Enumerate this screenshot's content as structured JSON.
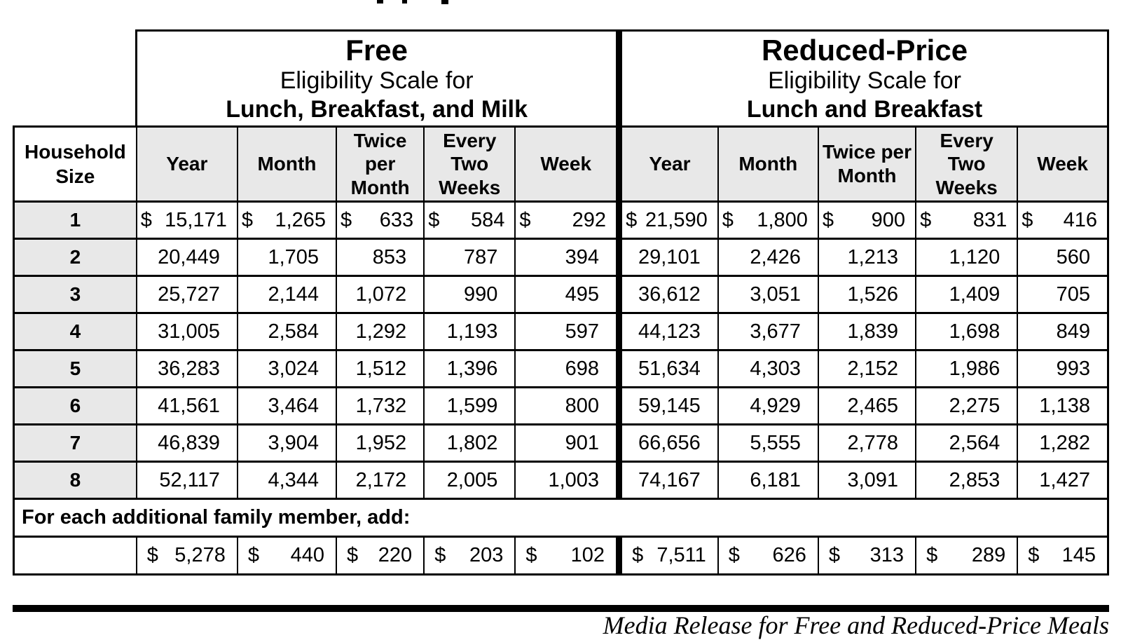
{
  "document": {
    "free_section": {
      "title": "Free",
      "subtitle": "Eligibility Scale for",
      "program": "Lunch, Breakfast, and Milk",
      "columns": [
        "Year",
        "Month",
        "Twice per Month",
        "Every Two Weeks",
        "Week"
      ]
    },
    "reduced_section": {
      "title": "Reduced-Price",
      "subtitle": "Eligibility Scale for",
      "program": "Lunch and Breakfast",
      "columns": [
        "Year",
        "Month",
        "Twice per Month",
        "Every Two Weeks",
        "Week"
      ]
    },
    "household_header": "Household Size",
    "rows": [
      {
        "household": "1",
        "free": [
          [
            "$",
            "15,171"
          ],
          [
            "$",
            "1,265"
          ],
          [
            "$",
            "633"
          ],
          [
            "$",
            "584"
          ],
          [
            "$",
            "292"
          ]
        ],
        "reduced": [
          [
            "$",
            "21,590"
          ],
          [
            "$",
            "1,800"
          ],
          [
            "$",
            "900"
          ],
          [
            "$",
            "831"
          ],
          [
            "$",
            "416"
          ]
        ]
      },
      {
        "household": "2",
        "free": [
          [
            "",
            "20,449"
          ],
          [
            "",
            "1,705"
          ],
          [
            "",
            "853"
          ],
          [
            "",
            "787"
          ],
          [
            "",
            "394"
          ]
        ],
        "reduced": [
          [
            "",
            "29,101"
          ],
          [
            "",
            "2,426"
          ],
          [
            "",
            "1,213"
          ],
          [
            "",
            "1,120"
          ],
          [
            "",
            "560"
          ]
        ]
      },
      {
        "household": "3",
        "free": [
          [
            "",
            "25,727"
          ],
          [
            "",
            "2,144"
          ],
          [
            "",
            "1,072"
          ],
          [
            "",
            "990"
          ],
          [
            "",
            "495"
          ]
        ],
        "reduced": [
          [
            "",
            "36,612"
          ],
          [
            "",
            "3,051"
          ],
          [
            "",
            "1,526"
          ],
          [
            "",
            "1,409"
          ],
          [
            "",
            "705"
          ]
        ]
      },
      {
        "household": "4",
        "free": [
          [
            "",
            "31,005"
          ],
          [
            "",
            "2,584"
          ],
          [
            "",
            "1,292"
          ],
          [
            "",
            "1,193"
          ],
          [
            "",
            "597"
          ]
        ],
        "reduced": [
          [
            "",
            "44,123"
          ],
          [
            "",
            "3,677"
          ],
          [
            "",
            "1,839"
          ],
          [
            "",
            "1,698"
          ],
          [
            "",
            "849"
          ]
        ]
      },
      {
        "household": "5",
        "free": [
          [
            "",
            "36,283"
          ],
          [
            "",
            "3,024"
          ],
          [
            "",
            "1,512"
          ],
          [
            "",
            "1,396"
          ],
          [
            "",
            "698"
          ]
        ],
        "reduced": [
          [
            "",
            "51,634"
          ],
          [
            "",
            "4,303"
          ],
          [
            "",
            "2,152"
          ],
          [
            "",
            "1,986"
          ],
          [
            "",
            "993"
          ]
        ]
      },
      {
        "household": "6",
        "free": [
          [
            "",
            "41,561"
          ],
          [
            "",
            "3,464"
          ],
          [
            "",
            "1,732"
          ],
          [
            "",
            "1,599"
          ],
          [
            "",
            "800"
          ]
        ],
        "reduced": [
          [
            "",
            "59,145"
          ],
          [
            "",
            "4,929"
          ],
          [
            "",
            "2,465"
          ],
          [
            "",
            "2,275"
          ],
          [
            "",
            "1,138"
          ]
        ]
      },
      {
        "household": "7",
        "free": [
          [
            "",
            "46,839"
          ],
          [
            "",
            "3,904"
          ],
          [
            "",
            "1,952"
          ],
          [
            "",
            "1,802"
          ],
          [
            "",
            "901"
          ]
        ],
        "reduced": [
          [
            "",
            "66,656"
          ],
          [
            "",
            "5,555"
          ],
          [
            "",
            "2,778"
          ],
          [
            "",
            "2,564"
          ],
          [
            "",
            "1,282"
          ]
        ]
      },
      {
        "household": "8",
        "free": [
          [
            "",
            "52,117"
          ],
          [
            "",
            "4,344"
          ],
          [
            "",
            "2,172"
          ],
          [
            "",
            "2,005"
          ],
          [
            "",
            "1,003"
          ]
        ],
        "reduced": [
          [
            "",
            "74,167"
          ],
          [
            "",
            "6,181"
          ],
          [
            "",
            "3,091"
          ],
          [
            "",
            "2,853"
          ],
          [
            "",
            "1,427"
          ]
        ]
      }
    ],
    "additional_row": {
      "label": "For each additional family member, add:",
      "free": [
        [
          "$",
          "5,278"
        ],
        [
          "$",
          "440"
        ],
        [
          "$",
          "220"
        ],
        [
          "$",
          "203"
        ],
        [
          "$",
          "102"
        ]
      ],
      "reduced": [
        [
          "$",
          "7,511"
        ],
        [
          "$",
          "626"
        ],
        [
          "$",
          "313"
        ],
        [
          "$",
          "289"
        ],
        [
          "$",
          "145"
        ]
      ]
    },
    "footer_note": "Media Release for Free and Reduced-Price Meals",
    "colors": {
      "header_fill": "#e8e8e8",
      "border": "#000000",
      "background": "#ffffff"
    }
  }
}
